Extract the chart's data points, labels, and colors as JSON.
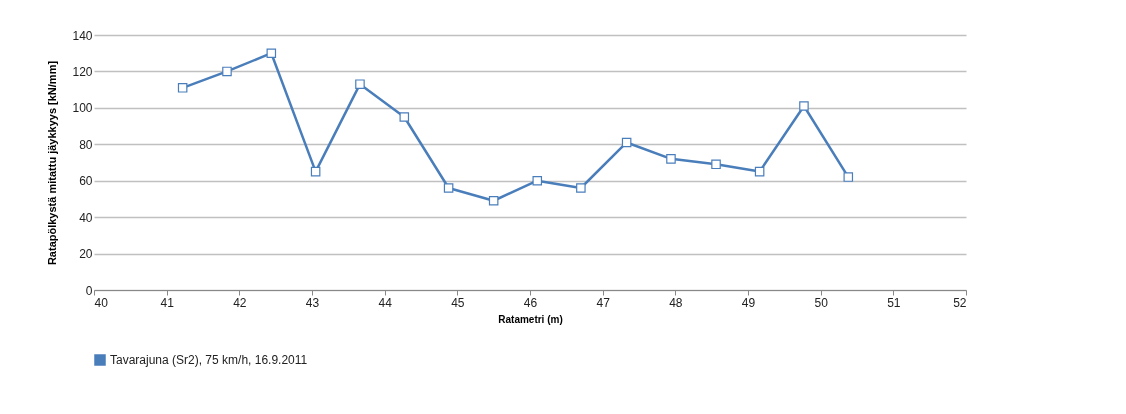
{
  "chart_data": {
    "type": "line",
    "xlabel": "Ratametri (m)",
    "ylabel": "Ratapölkystä mitattu jäykkyys [kN/mm]",
    "x": [
      41.22,
      41.83,
      42.44,
      43.05,
      43.66,
      44.27,
      44.88,
      45.5,
      46.1,
      46.7,
      47.33,
      47.94,
      48.56,
      49.16,
      49.77,
      50.38
    ],
    "series": [
      {
        "name": "Tavarajuna (Sr2), 75 km/h, 16.9.2011",
        "color": "#4a7ebb",
        "values": [
          111,
          120,
          130,
          65,
          113,
          95,
          56,
          49,
          60,
          56,
          81,
          72,
          69,
          65,
          101,
          62
        ]
      }
    ],
    "xlim": [
      40,
      52
    ],
    "xticks": [
      40,
      41,
      42,
      43,
      44,
      45,
      46,
      47,
      48,
      49,
      50,
      51,
      52
    ],
    "ylim": [
      0,
      140
    ],
    "yticks": [
      0,
      20,
      40,
      60,
      80,
      100,
      120,
      140
    ],
    "grid": "y",
    "legend": "bottom",
    "marker": "square",
    "line_style": "solid"
  }
}
